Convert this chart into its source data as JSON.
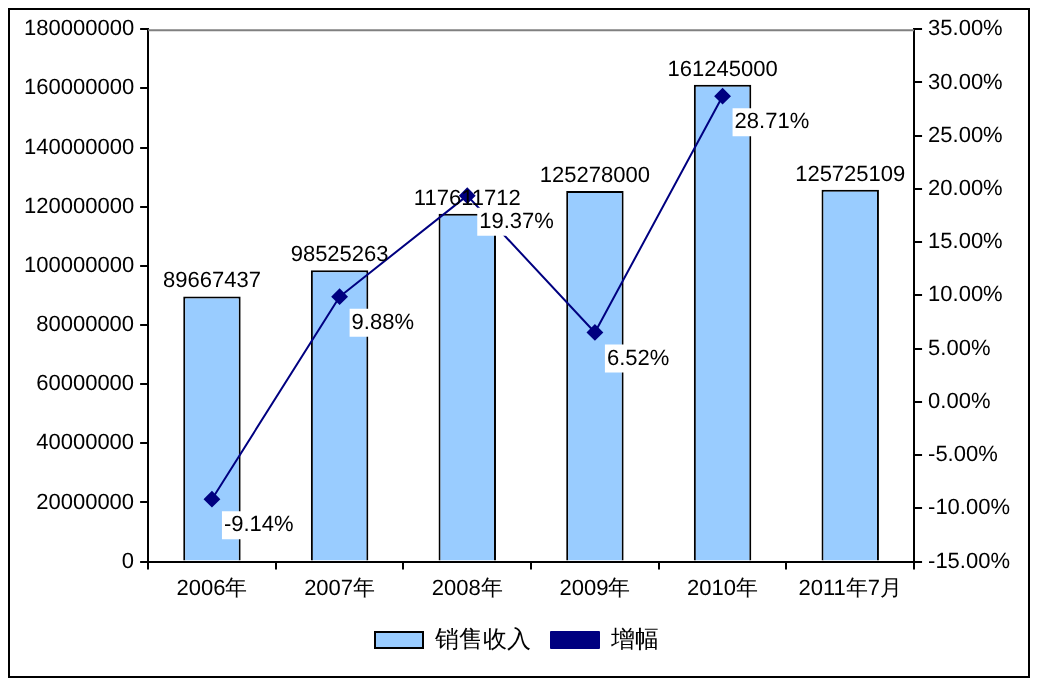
{
  "chart_data": {
    "type": "bar",
    "categories": [
      "2006年",
      "2007年",
      "2008年",
      "2009年",
      "2010年",
      "2011年7月"
    ],
    "series": [
      {
        "name": "销售收入",
        "color": "#99ccff",
        "values": [
          89667437,
          98525263,
          117611712,
          125278000,
          161245000,
          125725109
        ],
        "value_labels": [
          "89667437",
          "98525263",
          "117611712",
          "125278000",
          "161245000",
          "125725109"
        ]
      },
      {
        "name": "增幅",
        "type": "line",
        "axis": "y2",
        "color": "#000080",
        "marker": "diamond",
        "values": [
          -9.14,
          9.88,
          19.37,
          6.52,
          28.71,
          null
        ],
        "value_labels": [
          "-9.14%",
          "9.88%",
          "19.37%",
          "6.52%",
          "28.71%",
          null
        ]
      }
    ],
    "ylim": [
      0,
      180000000
    ],
    "yticks": [
      0,
      20000000,
      40000000,
      60000000,
      80000000,
      100000000,
      120000000,
      140000000,
      160000000,
      180000000
    ],
    "y2lim": [
      -15,
      35
    ],
    "y2ticks": [
      {
        "value": -15,
        "label": "-15.00%"
      },
      {
        "value": -10,
        "label": "-10.00%"
      },
      {
        "value": -5,
        "label": "-5.00%"
      },
      {
        "value": 0,
        "label": "0.00%"
      },
      {
        "value": 5,
        "label": "5.00%"
      },
      {
        "value": 10,
        "label": "10.00%"
      },
      {
        "value": 15,
        "label": "15.00%"
      },
      {
        "value": 20,
        "label": "20.00%"
      },
      {
        "value": 25,
        "label": "25.00%"
      },
      {
        "value": 30,
        "label": "30.00%"
      },
      {
        "value": 35,
        "label": "35.00%"
      }
    ],
    "grid": false,
    "legend": "bottom"
  }
}
